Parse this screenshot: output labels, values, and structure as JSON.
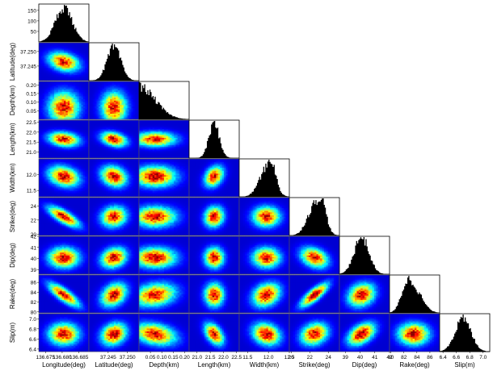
{
  "chart_data": {
    "type": "corner-plot",
    "parameters": [
      {
        "label": "Longitude(deg)",
        "ticks": [
          "136.675",
          "136.680",
          "136.685"
        ],
        "range": [
          136.673,
          136.688
        ],
        "mean": 136.6805,
        "sd": 0.0025
      },
      {
        "label": "Latitude(deg)",
        "ticks": [
          "37.245",
          "37.250"
        ],
        "range": [
          37.24,
          37.253
        ],
        "mean": 37.2465,
        "sd": 0.0018
      },
      {
        "label": "Depth(km)",
        "ticks": [
          "0.05",
          "0.10",
          "0.15",
          "0.20"
        ],
        "range": [
          0.0,
          0.22
        ],
        "mean": 0.07,
        "sd": 0.05
      },
      {
        "label": "Length(km)",
        "ticks": [
          "21.0",
          "21.5",
          "22.0",
          "22.5"
        ],
        "range": [
          20.7,
          22.6
        ],
        "mean": 21.65,
        "sd": 0.2
      },
      {
        "label": "Width(km)",
        "ticks": [
          "11.5",
          "12.0",
          "12.5"
        ],
        "range": [
          11.3,
          12.5
        ],
        "mean": 11.95,
        "sd": 0.18
      },
      {
        "label": "Strike(deg)",
        "ticks": [
          "20",
          "22",
          "24"
        ],
        "range": [
          19.8,
          25.2
        ],
        "mean": 22.5,
        "sd": 0.8
      },
      {
        "label": "Dip(deg)",
        "ticks": [
          "39",
          "40",
          "41",
          "42"
        ],
        "range": [
          38.6,
          42.0
        ],
        "mean": 40.1,
        "sd": 0.5
      },
      {
        "label": "Rake(deg)",
        "ticks": [
          "80",
          "82",
          "84",
          "86"
        ],
        "range": [
          79.8,
          87.5
        ],
        "mean": 83.5,
        "sd": 1.3
      },
      {
        "label": "Slip(m)",
        "ticks": [
          "6.4",
          "6.6",
          "6.8",
          "7.0"
        ],
        "range": [
          6.35,
          7.1
        ],
        "mean": 6.7,
        "sd": 0.12
      }
    ],
    "row_ticks": {
      "Longitude(deg)": [
        "50",
        "100",
        "150"
      ],
      "Latitude(deg)": [
        "37.245",
        "37.250"
      ],
      "Depth(km)": [
        "0.05",
        "0.10",
        "0.15",
        "0.20"
      ],
      "Length(km)": [
        "21.0",
        "21.5",
        "22.0",
        "22.5"
      ],
      "Width(km)": [
        "11.5",
        "12.0"
      ],
      "Strike(deg)": [
        "20",
        "22",
        "24"
      ],
      "Dip(deg)": [
        "39",
        "40",
        "41",
        "42"
      ],
      "Rake(deg)": [
        "80",
        "82",
        "84",
        "86"
      ],
      "Slip(m)": [
        "6.4",
        "6.6",
        "6.8",
        "7.0"
      ]
    },
    "first_histogram_count_range": [
      0,
      180
    ],
    "correlations": [
      {
        "pair": [
          "Latitude(deg)",
          "Longitude(deg)"
        ],
        "r": -0.3
      },
      {
        "pair": [
          "Depth(km)",
          "Longitude(deg)"
        ],
        "r": 0.0
      },
      {
        "pair": [
          "Depth(km)",
          "Latitude(deg)"
        ],
        "r": 0.0
      },
      {
        "pair": [
          "Length(km)",
          "Longitude(deg)"
        ],
        "r": -0.2
      },
      {
        "pair": [
          "Length(km)",
          "Latitude(deg)"
        ],
        "r": -0.3
      },
      {
        "pair": [
          "Length(km)",
          "Depth(km)"
        ],
        "r": 0.0
      },
      {
        "pair": [
          "Width(km)",
          "Longitude(deg)"
        ],
        "r": -0.25
      },
      {
        "pair": [
          "Width(km)",
          "Latitude(deg)"
        ],
        "r": -0.2
      },
      {
        "pair": [
          "Width(km)",
          "Depth(km)"
        ],
        "r": 0.0
      },
      {
        "pair": [
          "Width(km)",
          "Length(km)"
        ],
        "r": 0.3
      },
      {
        "pair": [
          "Strike(deg)",
          "Longitude(deg)"
        ],
        "r": -0.75
      },
      {
        "pair": [
          "Strike(deg)",
          "Latitude(deg)"
        ],
        "r": 0.1
      },
      {
        "pair": [
          "Strike(deg)",
          "Depth(km)"
        ],
        "r": 0.0
      },
      {
        "pair": [
          "Strike(deg)",
          "Length(km)"
        ],
        "r": 0.1
      },
      {
        "pair": [
          "Strike(deg)",
          "Width(km)"
        ],
        "r": 0.0
      },
      {
        "pair": [
          "Dip(deg)",
          "Longitude(deg)"
        ],
        "r": 0.0
      },
      {
        "pair": [
          "Dip(deg)",
          "Latitude(deg)"
        ],
        "r": 0.2
      },
      {
        "pair": [
          "Dip(deg)",
          "Depth(km)"
        ],
        "r": 0.0
      },
      {
        "pair": [
          "Dip(deg)",
          "Length(km)"
        ],
        "r": 0.0
      },
      {
        "pair": [
          "Dip(deg)",
          "Width(km)"
        ],
        "r": 0.0
      },
      {
        "pair": [
          "Dip(deg)",
          "Strike(deg)"
        ],
        "r": -0.3
      },
      {
        "pair": [
          "Rake(deg)",
          "Longitude(deg)"
        ],
        "r": -0.8
      },
      {
        "pair": [
          "Rake(deg)",
          "Latitude(deg)"
        ],
        "r": 0.3
      },
      {
        "pair": [
          "Rake(deg)",
          "Depth(km)"
        ],
        "r": 0.2
      },
      {
        "pair": [
          "Rake(deg)",
          "Length(km)"
        ],
        "r": 0.0
      },
      {
        "pair": [
          "Rake(deg)",
          "Width(km)"
        ],
        "r": 0.25
      },
      {
        "pair": [
          "Rake(deg)",
          "Strike(deg)"
        ],
        "r": 0.8
      },
      {
        "pair": [
          "Rake(deg)",
          "Dip(deg)"
        ],
        "r": 0.2
      },
      {
        "pair": [
          "Slip(m)",
          "Longitude(deg)"
        ],
        "r": 0.0
      },
      {
        "pair": [
          "Slip(m)",
          "Latitude(deg)"
        ],
        "r": 0.2
      },
      {
        "pair": [
          "Slip(m)",
          "Depth(km)"
        ],
        "r": -0.3
      },
      {
        "pair": [
          "Slip(m)",
          "Length(km)"
        ],
        "r": -0.45
      },
      {
        "pair": [
          "Slip(m)",
          "Width(km)"
        ],
        "r": -0.2
      },
      {
        "pair": [
          "Slip(m)",
          "Strike(deg)"
        ],
        "r": 0.2
      },
      {
        "pair": [
          "Slip(m)",
          "Dip(deg)"
        ],
        "r": 0.45
      },
      {
        "pair": [
          "Slip(m)",
          "Rake(deg)"
        ],
        "r": 0.0
      }
    ],
    "colormap": "jet",
    "histogram_color": "#000000",
    "grid": false,
    "legend": "none"
  }
}
